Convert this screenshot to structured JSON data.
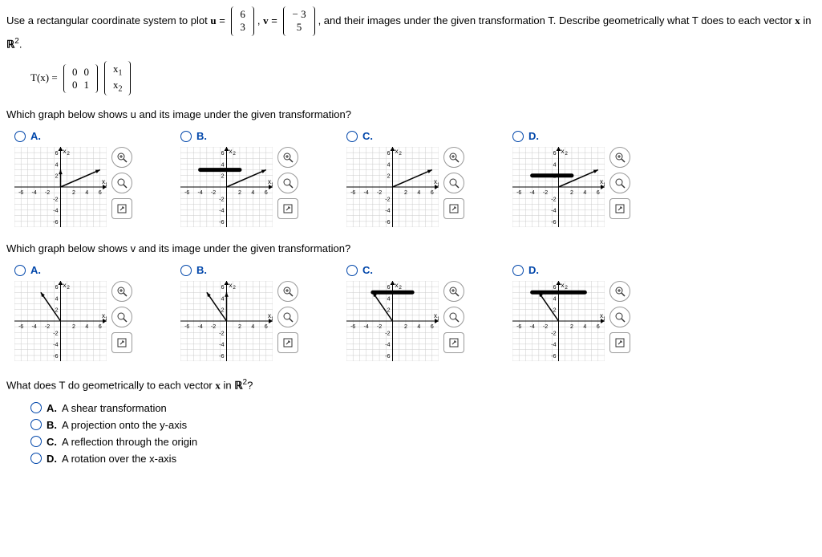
{
  "intro": {
    "text1": "Use a rectangular coordinate system to plot ",
    "u_label": "u",
    "eq": " = ",
    "u_top": "6",
    "u_bot": "3",
    "v_label": "v",
    "v_top": "− 3",
    "v_bot": "5",
    "text2": ", and their images under the given transformation T. Describe geometrically what T does to each vector ",
    "x_label": "x",
    "text3": " in ",
    "R2": "ℝ",
    "period": "."
  },
  "tx": {
    "label": "T(x) = ",
    "m00": "0",
    "m01": "0",
    "m10": "0",
    "m11": "1",
    "vec_top": "x",
    "vec_top_sub": "1",
    "vec_bot": "x",
    "vec_bot_sub": "2"
  },
  "q1": "Which graph below shows u and its image under the given transformation?",
  "q2": "Which graph below shows v and its image under the given transformation?",
  "labels": {
    "A": "A.",
    "B": "B.",
    "C": "C.",
    "D": "D."
  },
  "axis": {
    "x": "x",
    "x1sub": "1",
    "x2sub": "2"
  },
  "graph": {
    "xmin": -7,
    "xmax": 7,
    "ymin": -7,
    "ymax": 7,
    "ticks": [
      -6,
      -4,
      -2,
      2,
      4,
      6
    ],
    "grid_color": "#cccccc",
    "axis_color": "#000000",
    "vec_color": "#000000",
    "width": 115,
    "height": 100
  },
  "graphs_u": {
    "A": {
      "vectors": [
        [
          6,
          3
        ],
        [
          0,
          3
        ]
      ],
      "blob": null
    },
    "B": {
      "vectors": [
        [
          6,
          3
        ]
      ],
      "blob": [
        -4,
        3,
        2,
        3
      ]
    },
    "C": {
      "vectors": [
        [
          6,
          3
        ]
      ],
      "blob": null
    },
    "D": {
      "vectors": [
        [
          6,
          3
        ]
      ],
      "blob": [
        -4,
        2,
        2,
        2
      ]
    }
  },
  "graphs_v": {
    "A": {
      "vectors": [
        [
          -3,
          5
        ]
      ],
      "blob": null
    },
    "B": {
      "vectors": [
        [
          -3,
          5
        ],
        [
          0,
          5
        ]
      ],
      "blob": null
    },
    "C": {
      "vectors": [
        [
          -3,
          5
        ]
      ],
      "blob": [
        -3,
        5,
        3,
        5
      ]
    },
    "D": {
      "vectors": [
        [
          -3,
          5
        ]
      ],
      "blob": [
        -4,
        5,
        4,
        5
      ]
    }
  },
  "tools": {
    "zoom_in": "⊕",
    "zoom_out": "🔍",
    "expand": "⤢"
  },
  "q3": "What does T do geometrically to each vector x in ℝ²?",
  "final": {
    "A": "A shear transformation",
    "B": "A projection onto the y-axis",
    "C": "A reflection through the origin",
    "D": "A rotation over the x-axis"
  }
}
